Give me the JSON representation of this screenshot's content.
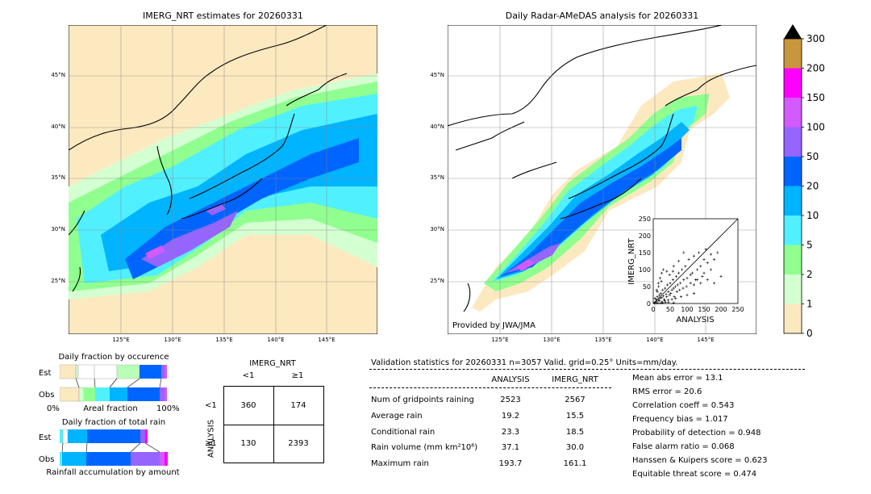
{
  "panels": {
    "left_title": "IMERG_NRT estimates for 20260331",
    "right_title": "Daily Radar-AMeDAS analysis for 20260331",
    "credit": "Provided by JWA/JMA",
    "lat_labels": [
      "45°N",
      "40°N",
      "35°N",
      "30°N",
      "25°N"
    ],
    "lon_labels": [
      "125°E",
      "130°E",
      "135°E",
      "140°E",
      "145°E"
    ]
  },
  "colorbar": {
    "ticks": [
      "300",
      "200",
      "150",
      "100",
      "50",
      "20",
      "10",
      "5",
      "2",
      "1",
      "0"
    ],
    "colors": [
      "#c8963c",
      "#ff00ff",
      "#d25aff",
      "#9664ff",
      "#0064ff",
      "#00b4ff",
      "#50f0ff",
      "#90ff90",
      "#d4ffd0",
      "#fde9c0"
    ],
    "over_color": "#000000"
  },
  "scatter": {
    "ylabel": "IMERG_NRT",
    "xlabel": "ANALYSIS",
    "ticks": [
      "0",
      "50",
      "100",
      "150",
      "200",
      "250"
    ]
  },
  "occurrence": {
    "title": "Daily fraction by occurence",
    "est_label": "Est",
    "obs_label": "Obs",
    "axis_left": "0%",
    "axis_mid": "Areal fraction",
    "axis_right": "100%"
  },
  "rainfall": {
    "title": "Daily fraction of total rain",
    "est_label": "Est",
    "obs_label": "Obs",
    "axis_label": "Rainfall accumulation by amount"
  },
  "contingency": {
    "col_title": "IMERG_NRT",
    "col_lt": "<1",
    "col_ge": "≥1",
    "row_title": "ANALYSIS",
    "row_lt": "<1",
    "row_ge": "≥1",
    "a": "360",
    "b": "174",
    "c": "130",
    "d": "2393"
  },
  "validation": {
    "header": "Validation statistics for 20260331  n=3057 Valid. grid=0.25° Units=mm/day.",
    "col1": "ANALYSIS",
    "col2": "IMERG_NRT",
    "rows": [
      {
        "label": "Num of gridpoints raining",
        "a": "2523",
        "b": "2567"
      },
      {
        "label": "Average rain",
        "a": "19.2",
        "b": "15.5"
      },
      {
        "label": "Conditional rain",
        "a": "23.3",
        "b": "18.5"
      },
      {
        "label": "Rain volume (mm km²10⁶)",
        "a": "37.1",
        "b": "30.0"
      },
      {
        "label": "Maximum rain",
        "a": "193.7",
        "b": "161.1"
      }
    ],
    "scores": [
      "Mean abs error =   13.1",
      "RMS error =   20.6",
      "Correlation coeff =  0.543",
      "Frequency bias =  1.017",
      "Probability of detection =  0.948",
      "False alarm ratio =  0.068",
      "Hanssen & Kuipers score =  0.623",
      "Equitable threat score =  0.474"
    ]
  },
  "chart_data": {
    "type": "scatter",
    "xlabel": "ANALYSIS",
    "ylabel": "IMERG_NRT",
    "xlim": [
      0,
      250
    ],
    "ylim": [
      0,
      250
    ],
    "points": [
      [
        5,
        3
      ],
      [
        8,
        12
      ],
      [
        10,
        6
      ],
      [
        12,
        20
      ],
      [
        15,
        10
      ],
      [
        18,
        25
      ],
      [
        20,
        15
      ],
      [
        22,
        30
      ],
      [
        25,
        18
      ],
      [
        28,
        40
      ],
      [
        30,
        22
      ],
      [
        32,
        12
      ],
      [
        35,
        45
      ],
      [
        38,
        28
      ],
      [
        40,
        20
      ],
      [
        42,
        55
      ],
      [
        45,
        35
      ],
      [
        48,
        25
      ],
      [
        50,
        60
      ],
      [
        52,
        30
      ],
      [
        55,
        40
      ],
      [
        58,
        70
      ],
      [
        60,
        45
      ],
      [
        62,
        20
      ],
      [
        65,
        50
      ],
      [
        68,
        80
      ],
      [
        70,
        35
      ],
      [
        72,
        55
      ],
      [
        75,
        90
      ],
      [
        78,
        40
      ],
      [
        80,
        60
      ],
      [
        85,
        100
      ],
      [
        88,
        45
      ],
      [
        90,
        70
      ],
      [
        95,
        110
      ],
      [
        98,
        50
      ],
      [
        100,
        75
      ],
      [
        105,
        130
      ],
      [
        110,
        60
      ],
      [
        115,
        90
      ],
      [
        120,
        140
      ],
      [
        125,
        70
      ],
      [
        130,
        100
      ],
      [
        135,
        150
      ],
      [
        140,
        110
      ],
      [
        145,
        80
      ],
      [
        150,
        130
      ],
      [
        155,
        160
      ],
      [
        160,
        120
      ],
      [
        170,
        145
      ],
      [
        180,
        130
      ],
      [
        190,
        150
      ],
      [
        15,
        60
      ],
      [
        20,
        75
      ],
      [
        25,
        90
      ],
      [
        30,
        100
      ],
      [
        10,
        40
      ],
      [
        40,
        95
      ],
      [
        60,
        110
      ],
      [
        75,
        125
      ],
      [
        90,
        150
      ],
      [
        110,
        85
      ],
      [
        130,
        70
      ],
      [
        150,
        90
      ],
      [
        170,
        100
      ],
      [
        5,
        15
      ],
      [
        12,
        35
      ],
      [
        18,
        8
      ],
      [
        26,
        5
      ],
      [
        34,
        8
      ],
      [
        44,
        10
      ],
      [
        55,
        12
      ],
      [
        66,
        15
      ],
      [
        82,
        20
      ],
      [
        100,
        25
      ],
      [
        120,
        30
      ],
      [
        60,
        2
      ],
      [
        45,
        4
      ],
      [
        36,
        3
      ],
      [
        28,
        2
      ],
      [
        22,
        1
      ],
      [
        14,
        1
      ],
      [
        8,
        1
      ],
      [
        3,
        1
      ],
      [
        120,
        55
      ],
      [
        140,
        60
      ],
      [
        160,
        70
      ],
      [
        180,
        60
      ],
      [
        200,
        80
      ],
      [
        16,
        50
      ],
      [
        24,
        65
      ],
      [
        48,
        85
      ],
      [
        58,
        95
      ]
    ]
  }
}
